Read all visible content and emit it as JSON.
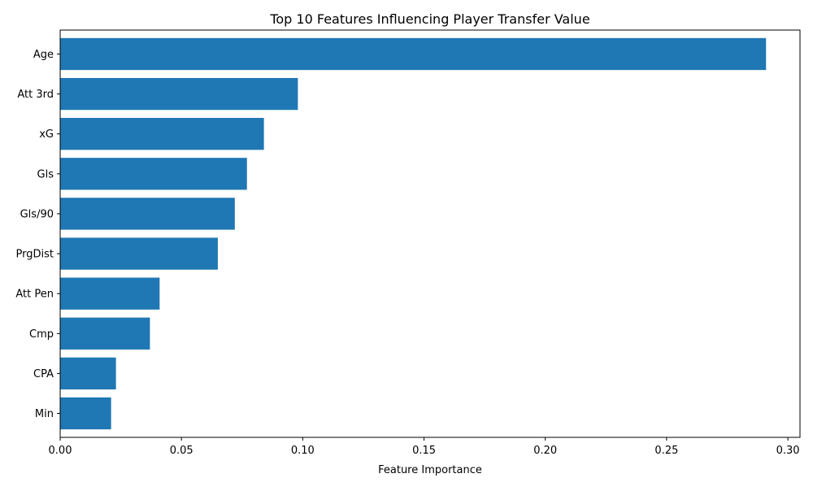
{
  "chart_data": {
    "type": "bar",
    "orientation": "horizontal",
    "title": "Top 10 Features Influencing Player Transfer Value",
    "xlabel": "Feature Importance",
    "ylabel": "",
    "categories": [
      "Age",
      "Att 3rd",
      "xG",
      "Gls",
      "Gls/90",
      "PrgDist",
      "Att Pen",
      "Cmp",
      "CPA",
      "Min"
    ],
    "values": [
      0.291,
      0.098,
      0.084,
      0.077,
      0.072,
      0.065,
      0.041,
      0.037,
      0.023,
      0.021
    ],
    "xlim": [
      0.0,
      0.305
    ],
    "xticks": [
      "0.00",
      "0.05",
      "0.10",
      "0.15",
      "0.20",
      "0.25",
      "0.30"
    ],
    "xtick_values": [
      0.0,
      0.05,
      0.1,
      0.15,
      0.2,
      0.25,
      0.3
    ],
    "bar_color": "#1f77b4",
    "grid": false,
    "legend": "none"
  }
}
